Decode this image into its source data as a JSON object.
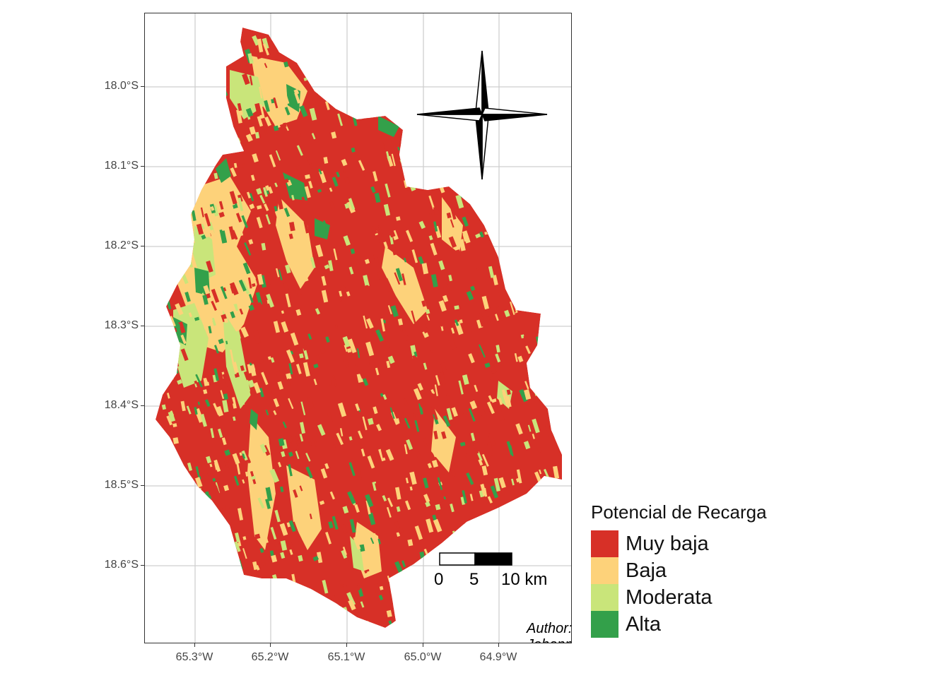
{
  "map": {
    "y_axis_ticks": [
      "18.0°S",
      "18.1°S",
      "18.2°S",
      "18.3°S",
      "18.4°S",
      "18.5°S",
      "18.6°S"
    ],
    "x_axis_ticks": [
      "65.3°W",
      "65.2°W",
      "65.1°W",
      "65.0°W",
      "64.9°W"
    ],
    "north_label": "N",
    "scale_bar": {
      "labels": [
        "0",
        "5",
        "10 km"
      ]
    },
    "author": "Author: Johannes Quente",
    "colors": {
      "muy_baja": "#d73027",
      "baja": "#fdd27a",
      "moderata": "#c9e57a",
      "alta": "#33a04a",
      "grid": "#cfcfcf"
    }
  },
  "legend": {
    "title": "Potencial de Recarga",
    "items": [
      {
        "label": "Muy baja",
        "color": "#d73027"
      },
      {
        "label": "Baja",
        "color": "#fdd27a"
      },
      {
        "label": "Moderata",
        "color": "#c9e57a"
      },
      {
        "label": "Alta",
        "color": "#33a04a"
      }
    ]
  }
}
